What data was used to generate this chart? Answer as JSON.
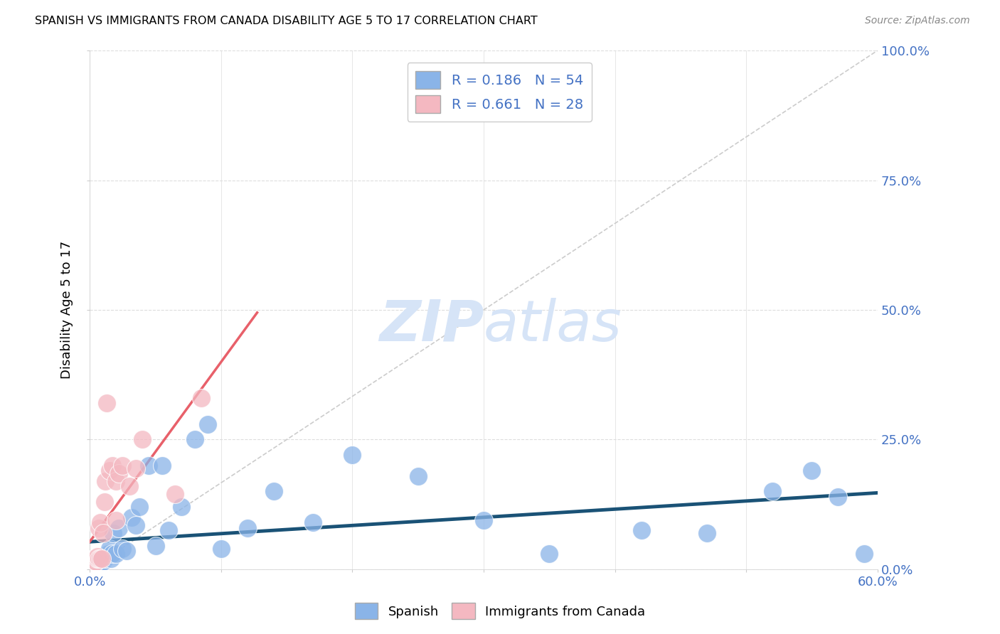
{
  "title": "SPANISH VS IMMIGRANTS FROM CANADA DISABILITY AGE 5 TO 17 CORRELATION CHART",
  "source": "Source: ZipAtlas.com",
  "ylabel": "Disability Age 5 to 17",
  "legend_label1": "Spanish",
  "legend_label2": "Immigrants from Canada",
  "R1": 0.186,
  "N1": 54,
  "R2": 0.661,
  "N2": 28,
  "color_blue": "#8ab4e8",
  "color_pink": "#f4b8c1",
  "color_trend_blue": "#1a5276",
  "color_trend_pink": "#e8606a",
  "color_diag": "#cccccc",
  "color_axis_label": "#4472c4",
  "watermark_text": "ZIPatlas",
  "watermark_color": "#d6e4f7",
  "blue_x": [
    0.001,
    0.002,
    0.003,
    0.003,
    0.004,
    0.004,
    0.005,
    0.005,
    0.006,
    0.006,
    0.007,
    0.007,
    0.008,
    0.008,
    0.009,
    0.009,
    0.01,
    0.01,
    0.011,
    0.012,
    0.013,
    0.014,
    0.015,
    0.016,
    0.017,
    0.018,
    0.02,
    0.022,
    0.025,
    0.028,
    0.032,
    0.035,
    0.038,
    0.045,
    0.05,
    0.055,
    0.06,
    0.07,
    0.08,
    0.09,
    0.1,
    0.12,
    0.14,
    0.17,
    0.2,
    0.25,
    0.3,
    0.35,
    0.42,
    0.47,
    0.52,
    0.55,
    0.57,
    0.59
  ],
  "blue_y": [
    0.015,
    0.01,
    0.02,
    0.015,
    0.01,
    0.02,
    0.015,
    0.01,
    0.02,
    0.015,
    0.02,
    0.015,
    0.02,
    0.01,
    0.02,
    0.015,
    0.02,
    0.015,
    0.025,
    0.02,
    0.025,
    0.03,
    0.04,
    0.02,
    0.03,
    0.07,
    0.03,
    0.08,
    0.04,
    0.035,
    0.1,
    0.085,
    0.12,
    0.2,
    0.045,
    0.2,
    0.075,
    0.12,
    0.25,
    0.28,
    0.04,
    0.08,
    0.15,
    0.09,
    0.22,
    0.18,
    0.095,
    0.03,
    0.075,
    0.07,
    0.15,
    0.19,
    0.14,
    0.03
  ],
  "pink_x": [
    0.001,
    0.002,
    0.003,
    0.004,
    0.004,
    0.005,
    0.006,
    0.006,
    0.007,
    0.007,
    0.008,
    0.008,
    0.009,
    0.01,
    0.011,
    0.012,
    0.013,
    0.015,
    0.017,
    0.02,
    0.02,
    0.022,
    0.025,
    0.03,
    0.035,
    0.04,
    0.065,
    0.085
  ],
  "pink_y": [
    0.015,
    0.015,
    0.02,
    0.015,
    0.02,
    0.015,
    0.02,
    0.025,
    0.02,
    0.08,
    0.09,
    0.02,
    0.02,
    0.07,
    0.13,
    0.17,
    0.32,
    0.19,
    0.2,
    0.095,
    0.17,
    0.185,
    0.2,
    0.16,
    0.195,
    0.25,
    0.145,
    0.33
  ],
  "xlim": [
    0,
    0.6
  ],
  "ylim": [
    0,
    1.0
  ],
  "figsize": [
    14.06,
    8.92
  ],
  "dpi": 100
}
